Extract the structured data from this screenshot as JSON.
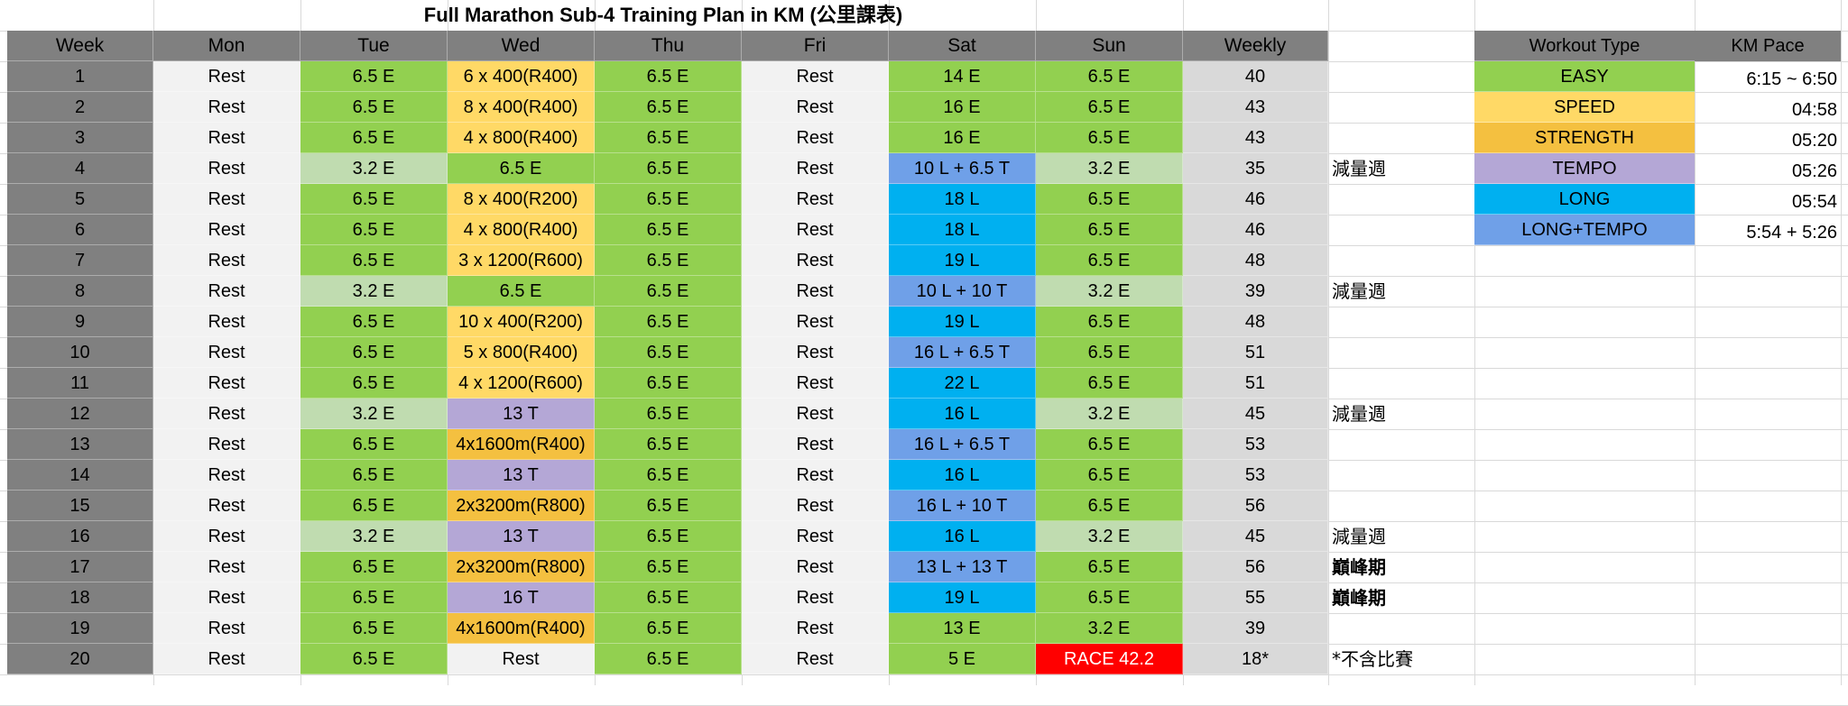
{
  "title": "Full Marathon Sub-4 Training Plan in KM (公里課表)",
  "headers": [
    "Week",
    "Mon",
    "Tue",
    "Wed",
    "Thu",
    "Fri",
    "Sat",
    "Sun",
    "Weekly"
  ],
  "rows": [
    {
      "week": "1",
      "cells": [
        {
          "text": "Rest",
          "type": "rest"
        },
        {
          "text": "6.5 E",
          "type": "easy"
        },
        {
          "text": "6 x 400(R400)",
          "type": "speed"
        },
        {
          "text": "6.5 E",
          "type": "easy"
        },
        {
          "text": "Rest",
          "type": "rest"
        },
        {
          "text": "14 E",
          "type": "easy"
        },
        {
          "text": "6.5 E",
          "type": "easy"
        }
      ],
      "weekly": "40",
      "note": "",
      "note_bold": false
    },
    {
      "week": "2",
      "cells": [
        {
          "text": "Rest",
          "type": "rest"
        },
        {
          "text": "6.5 E",
          "type": "easy"
        },
        {
          "text": "8 x 400(R400)",
          "type": "speed"
        },
        {
          "text": "6.5 E",
          "type": "easy"
        },
        {
          "text": "Rest",
          "type": "rest"
        },
        {
          "text": "16 E",
          "type": "easy"
        },
        {
          "text": "6.5 E",
          "type": "easy"
        }
      ],
      "weekly": "43",
      "note": "",
      "note_bold": false
    },
    {
      "week": "3",
      "cells": [
        {
          "text": "Rest",
          "type": "rest"
        },
        {
          "text": "6.5 E",
          "type": "easy"
        },
        {
          "text": "4 x 800(R400)",
          "type": "speed"
        },
        {
          "text": "6.5 E",
          "type": "easy"
        },
        {
          "text": "Rest",
          "type": "rest"
        },
        {
          "text": "16 E",
          "type": "easy"
        },
        {
          "text": "6.5 E",
          "type": "easy"
        }
      ],
      "weekly": "43",
      "note": "",
      "note_bold": false
    },
    {
      "week": "4",
      "cells": [
        {
          "text": "Rest",
          "type": "rest"
        },
        {
          "text": "3.2 E",
          "type": "light"
        },
        {
          "text": "6.5 E",
          "type": "easy"
        },
        {
          "text": "6.5 E",
          "type": "easy"
        },
        {
          "text": "Rest",
          "type": "rest"
        },
        {
          "text": "10 L + 6.5 T",
          "type": "longtempo"
        },
        {
          "text": "3.2 E",
          "type": "light"
        }
      ],
      "weekly": "35",
      "note": "減量週",
      "note_bold": false
    },
    {
      "week": "5",
      "cells": [
        {
          "text": "Rest",
          "type": "rest"
        },
        {
          "text": "6.5 E",
          "type": "easy"
        },
        {
          "text": "8 x 400(R200)",
          "type": "speed"
        },
        {
          "text": "6.5 E",
          "type": "easy"
        },
        {
          "text": "Rest",
          "type": "rest"
        },
        {
          "text": "18 L",
          "type": "long"
        },
        {
          "text": "6.5 E",
          "type": "easy"
        }
      ],
      "weekly": "46",
      "note": "",
      "note_bold": false
    },
    {
      "week": "6",
      "cells": [
        {
          "text": "Rest",
          "type": "rest"
        },
        {
          "text": "6.5 E",
          "type": "easy"
        },
        {
          "text": "4 x 800(R400)",
          "type": "speed"
        },
        {
          "text": "6.5 E",
          "type": "easy"
        },
        {
          "text": "Rest",
          "type": "rest"
        },
        {
          "text": "18 L",
          "type": "long"
        },
        {
          "text": "6.5 E",
          "type": "easy"
        }
      ],
      "weekly": "46",
      "note": "",
      "note_bold": false
    },
    {
      "week": "7",
      "cells": [
        {
          "text": "Rest",
          "type": "rest"
        },
        {
          "text": "6.5 E",
          "type": "easy"
        },
        {
          "text": "3 x 1200(R600)",
          "type": "speed"
        },
        {
          "text": "6.5 E",
          "type": "easy"
        },
        {
          "text": "Rest",
          "type": "rest"
        },
        {
          "text": "19 L",
          "type": "long"
        },
        {
          "text": "6.5 E",
          "type": "easy"
        }
      ],
      "weekly": "48",
      "note": "",
      "note_bold": false
    },
    {
      "week": "8",
      "cells": [
        {
          "text": "Rest",
          "type": "rest"
        },
        {
          "text": "3.2 E",
          "type": "light"
        },
        {
          "text": "6.5 E",
          "type": "easy"
        },
        {
          "text": "6.5 E",
          "type": "easy"
        },
        {
          "text": "Rest",
          "type": "rest"
        },
        {
          "text": "10 L + 10 T",
          "type": "longtempo"
        },
        {
          "text": "3.2 E",
          "type": "light"
        }
      ],
      "weekly": "39",
      "note": "減量週",
      "note_bold": false
    },
    {
      "week": "9",
      "cells": [
        {
          "text": "Rest",
          "type": "rest"
        },
        {
          "text": "6.5 E",
          "type": "easy"
        },
        {
          "text": "10 x 400(R200)",
          "type": "speed"
        },
        {
          "text": "6.5 E",
          "type": "easy"
        },
        {
          "text": "Rest",
          "type": "rest"
        },
        {
          "text": "19 L",
          "type": "long"
        },
        {
          "text": "6.5 E",
          "type": "easy"
        }
      ],
      "weekly": "48",
      "note": "",
      "note_bold": false
    },
    {
      "week": "10",
      "cells": [
        {
          "text": "Rest",
          "type": "rest"
        },
        {
          "text": "6.5 E",
          "type": "easy"
        },
        {
          "text": "5 x 800(R400)",
          "type": "speed"
        },
        {
          "text": "6.5 E",
          "type": "easy"
        },
        {
          "text": "Rest",
          "type": "rest"
        },
        {
          "text": "16 L + 6.5 T",
          "type": "longtempo"
        },
        {
          "text": "6.5 E",
          "type": "easy"
        }
      ],
      "weekly": "51",
      "note": "",
      "note_bold": false
    },
    {
      "week": "11",
      "cells": [
        {
          "text": "Rest",
          "type": "rest"
        },
        {
          "text": "6.5 E",
          "type": "easy"
        },
        {
          "text": "4 x 1200(R600)",
          "type": "speed"
        },
        {
          "text": "6.5 E",
          "type": "easy"
        },
        {
          "text": "Rest",
          "type": "rest"
        },
        {
          "text": "22 L",
          "type": "long"
        },
        {
          "text": "6.5 E",
          "type": "easy"
        }
      ],
      "weekly": "51",
      "note": "",
      "note_bold": false
    },
    {
      "week": "12",
      "cells": [
        {
          "text": "Rest",
          "type": "rest"
        },
        {
          "text": "3.2 E",
          "type": "light"
        },
        {
          "text": "13 T",
          "type": "tempo"
        },
        {
          "text": "6.5 E",
          "type": "easy"
        },
        {
          "text": "Rest",
          "type": "rest"
        },
        {
          "text": "16 L",
          "type": "long"
        },
        {
          "text": "3.2 E",
          "type": "light"
        }
      ],
      "weekly": "45",
      "note": "減量週",
      "note_bold": false
    },
    {
      "week": "13",
      "cells": [
        {
          "text": "Rest",
          "type": "rest"
        },
        {
          "text": "6.5 E",
          "type": "easy"
        },
        {
          "text": "4x1600m(R400)",
          "type": "strength"
        },
        {
          "text": "6.5 E",
          "type": "easy"
        },
        {
          "text": "Rest",
          "type": "rest"
        },
        {
          "text": "16 L + 6.5 T",
          "type": "longtempo"
        },
        {
          "text": "6.5 E",
          "type": "easy"
        }
      ],
      "weekly": "53",
      "note": "",
      "note_bold": false
    },
    {
      "week": "14",
      "cells": [
        {
          "text": "Rest",
          "type": "rest"
        },
        {
          "text": "6.5 E",
          "type": "easy"
        },
        {
          "text": "13 T",
          "type": "tempo"
        },
        {
          "text": "6.5 E",
          "type": "easy"
        },
        {
          "text": "Rest",
          "type": "rest"
        },
        {
          "text": "16 L",
          "type": "long"
        },
        {
          "text": "6.5 E",
          "type": "easy"
        }
      ],
      "weekly": "53",
      "note": "",
      "note_bold": false
    },
    {
      "week": "15",
      "cells": [
        {
          "text": "Rest",
          "type": "rest"
        },
        {
          "text": "6.5 E",
          "type": "easy"
        },
        {
          "text": "2x3200m(R800)",
          "type": "strength"
        },
        {
          "text": "6.5 E",
          "type": "easy"
        },
        {
          "text": "Rest",
          "type": "rest"
        },
        {
          "text": "16 L + 10 T",
          "type": "longtempo"
        },
        {
          "text": "6.5 E",
          "type": "easy"
        }
      ],
      "weekly": "56",
      "note": "",
      "note_bold": false
    },
    {
      "week": "16",
      "cells": [
        {
          "text": "Rest",
          "type": "rest"
        },
        {
          "text": "3.2 E",
          "type": "light"
        },
        {
          "text": "13 T",
          "type": "tempo"
        },
        {
          "text": "6.5 E",
          "type": "easy"
        },
        {
          "text": "Rest",
          "type": "rest"
        },
        {
          "text": "16 L",
          "type": "long"
        },
        {
          "text": "3.2 E",
          "type": "light"
        }
      ],
      "weekly": "45",
      "note": "減量週",
      "note_bold": false
    },
    {
      "week": "17",
      "cells": [
        {
          "text": "Rest",
          "type": "rest"
        },
        {
          "text": "6.5 E",
          "type": "easy"
        },
        {
          "text": "2x3200m(R800)",
          "type": "strength"
        },
        {
          "text": "6.5 E",
          "type": "easy"
        },
        {
          "text": "Rest",
          "type": "rest"
        },
        {
          "text": "13 L + 13 T",
          "type": "longtempo"
        },
        {
          "text": "6.5 E",
          "type": "easy"
        }
      ],
      "weekly": "56",
      "note": "巔峰期",
      "note_bold": true
    },
    {
      "week": "18",
      "cells": [
        {
          "text": "Rest",
          "type": "rest"
        },
        {
          "text": "6.5 E",
          "type": "easy"
        },
        {
          "text": "16 T",
          "type": "tempo"
        },
        {
          "text": "6.5 E",
          "type": "easy"
        },
        {
          "text": "Rest",
          "type": "rest"
        },
        {
          "text": "19 L",
          "type": "long"
        },
        {
          "text": "6.5 E",
          "type": "easy"
        }
      ],
      "weekly": "55",
      "note": "巔峰期",
      "note_bold": true
    },
    {
      "week": "19",
      "cells": [
        {
          "text": "Rest",
          "type": "rest"
        },
        {
          "text": "6.5 E",
          "type": "easy"
        },
        {
          "text": "4x1600m(R400)",
          "type": "strength"
        },
        {
          "text": "6.5 E",
          "type": "easy"
        },
        {
          "text": "Rest",
          "type": "rest"
        },
        {
          "text": "13 E",
          "type": "easy"
        },
        {
          "text": "3.2 E",
          "type": "easy"
        }
      ],
      "weekly": "39",
      "note": "",
      "note_bold": false
    },
    {
      "week": "20",
      "cells": [
        {
          "text": "Rest",
          "type": "rest"
        },
        {
          "text": "6.5 E",
          "type": "easy"
        },
        {
          "text": "Rest",
          "type": "rest"
        },
        {
          "text": "6.5 E",
          "type": "easy"
        },
        {
          "text": "Rest",
          "type": "rest"
        },
        {
          "text": "5 E",
          "type": "easy"
        },
        {
          "text": "RACE 42.2",
          "type": "race"
        }
      ],
      "weekly": "18*",
      "note": "*不含比賽",
      "note_bold": false
    }
  ],
  "legend": {
    "header_type": "Workout Type",
    "header_pace": "KM Pace",
    "items": [
      {
        "label": "EASY",
        "pace": "6:15 ~ 6:50",
        "type": "easy"
      },
      {
        "label": "SPEED",
        "pace": "04:58",
        "type": "speed"
      },
      {
        "label": "STRENGTH",
        "pace": "05:20",
        "type": "strength"
      },
      {
        "label": "TEMPO",
        "pace": "05:26",
        "type": "tempo"
      },
      {
        "label": "LONG",
        "pace": "05:54",
        "type": "long"
      },
      {
        "label": "LONG+TEMPO",
        "pace": "5:54 + 5:26",
        "type": "longtempo"
      }
    ]
  },
  "colors": {
    "header_gray": "#808080",
    "weekly_gray": "#d9d9d9",
    "rest": "#f2f2f2",
    "easy": "#92d050",
    "light_easy": "#c0dcb0",
    "speed": "#ffd966",
    "strength": "#f4c040",
    "tempo": "#b4a7d6",
    "long": "#00b0f0",
    "long_tempo": "#6fa0e8",
    "race": "#ff0000"
  }
}
